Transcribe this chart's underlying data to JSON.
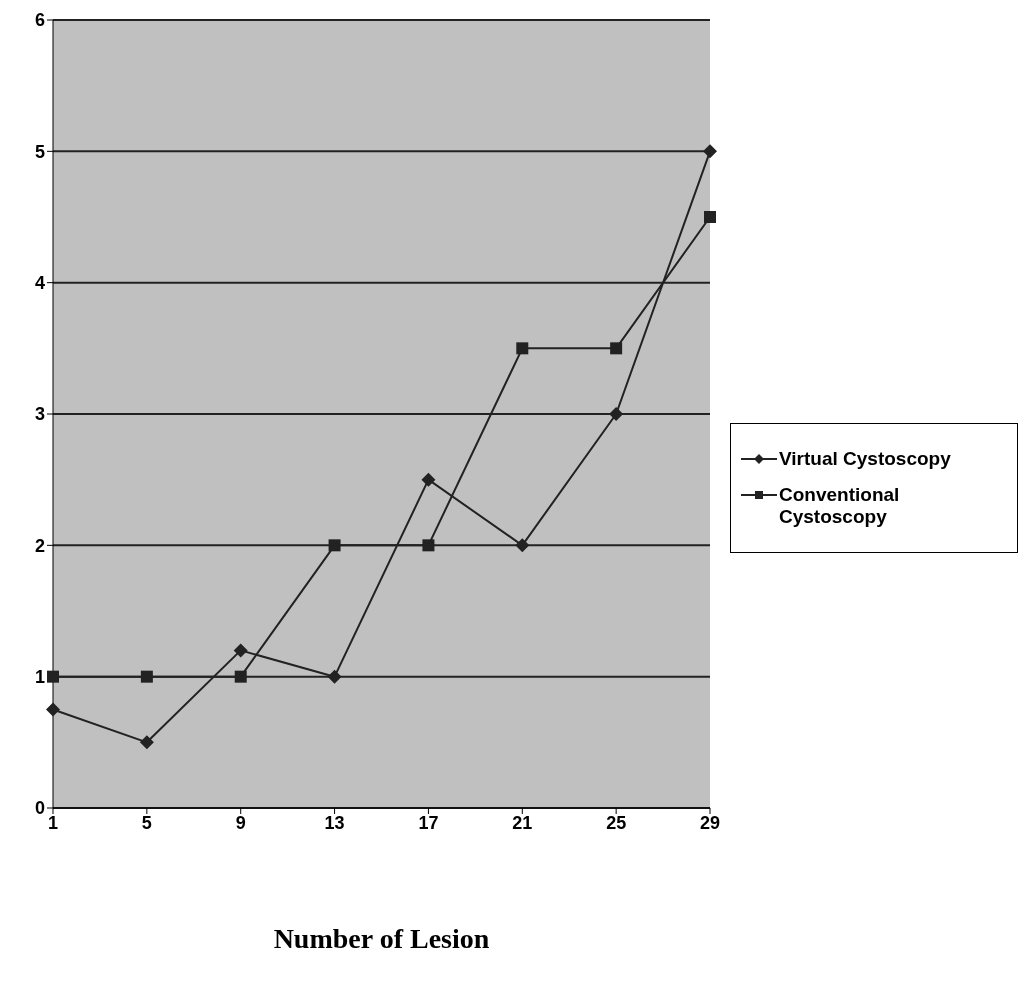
{
  "chart_data": {
    "type": "line",
    "xlabel": "Number of Lesion",
    "categories": [
      "1",
      "5",
      "9",
      "13",
      "17",
      "21",
      "25",
      "29"
    ],
    "series": [
      {
        "name": "Virtual Cystoscopy",
        "color": "#222222",
        "marker": "diamond",
        "values": [
          0.75,
          0.5,
          1.2,
          1.0,
          2.5,
          2.0,
          3.0,
          5.0
        ]
      },
      {
        "name": "Conventional Cystoscopy",
        "color": "#222222",
        "marker": "square",
        "values": [
          1,
          1,
          1,
          2,
          2,
          3.5,
          3.5,
          4.5
        ]
      }
    ],
    "ylim": [
      0,
      6
    ],
    "yticks": [
      0,
      1,
      2,
      3,
      4,
      5,
      6
    ],
    "grid": "y",
    "legend": "right"
  }
}
